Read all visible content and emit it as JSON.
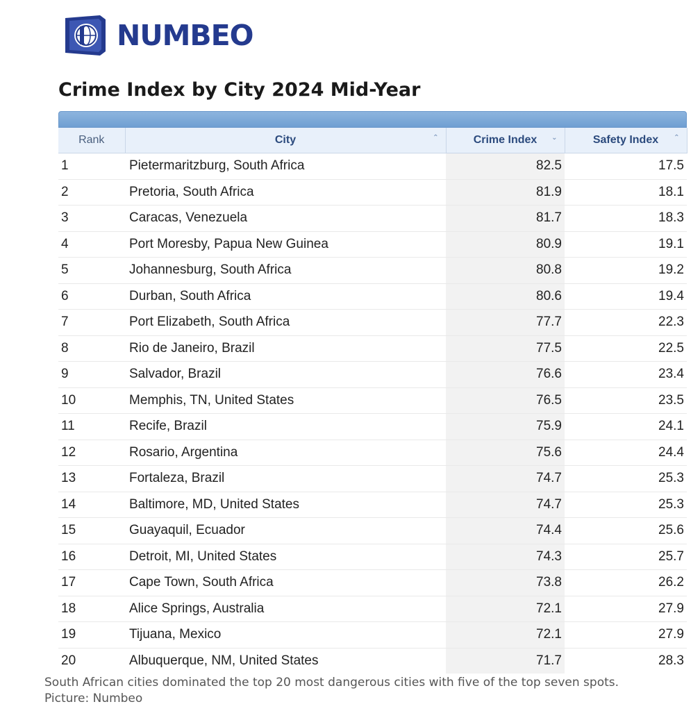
{
  "logo": {
    "text": "NUMBEO"
  },
  "title": "Crime Index by City 2024 Mid-Year",
  "table": {
    "headers": {
      "rank": "Rank",
      "city": "City",
      "crime": "Crime Index",
      "safety": "Safety Index"
    },
    "sort_icons": {
      "city": "⌃",
      "crime": "⌄",
      "safety": "⌃"
    },
    "rows": [
      {
        "rank": "1",
        "city": "Pietermaritzburg, South Africa",
        "crime": "82.5",
        "safety": "17.5"
      },
      {
        "rank": "2",
        "city": "Pretoria, South Africa",
        "crime": "81.9",
        "safety": "18.1"
      },
      {
        "rank": "3",
        "city": "Caracas, Venezuela",
        "crime": "81.7",
        "safety": "18.3"
      },
      {
        "rank": "4",
        "city": "Port Moresby, Papua New Guinea",
        "crime": "80.9",
        "safety": "19.1"
      },
      {
        "rank": "5",
        "city": "Johannesburg, South Africa",
        "crime": "80.8",
        "safety": "19.2"
      },
      {
        "rank": "6",
        "city": "Durban, South Africa",
        "crime": "80.6",
        "safety": "19.4"
      },
      {
        "rank": "7",
        "city": "Port Elizabeth, South Africa",
        "crime": "77.7",
        "safety": "22.3"
      },
      {
        "rank": "8",
        "city": "Rio de Janeiro, Brazil",
        "crime": "77.5",
        "safety": "22.5"
      },
      {
        "rank": "9",
        "city": "Salvador, Brazil",
        "crime": "76.6",
        "safety": "23.4"
      },
      {
        "rank": "10",
        "city": "Memphis, TN, United States",
        "crime": "76.5",
        "safety": "23.5"
      },
      {
        "rank": "11",
        "city": "Recife, Brazil",
        "crime": "75.9",
        "safety": "24.1"
      },
      {
        "rank": "12",
        "city": "Rosario, Argentina",
        "crime": "75.6",
        "safety": "24.4"
      },
      {
        "rank": "13",
        "city": "Fortaleza, Brazil",
        "crime": "74.7",
        "safety": "25.3"
      },
      {
        "rank": "14",
        "city": "Baltimore, MD, United States",
        "crime": "74.7",
        "safety": "25.3"
      },
      {
        "rank": "15",
        "city": "Guayaquil, Ecuador",
        "crime": "74.4",
        "safety": "25.6"
      },
      {
        "rank": "16",
        "city": "Detroit, MI, United States",
        "crime": "74.3",
        "safety": "25.7"
      },
      {
        "rank": "17",
        "city": "Cape Town, South Africa",
        "crime": "73.8",
        "safety": "26.2"
      },
      {
        "rank": "18",
        "city": "Alice Springs, Australia",
        "crime": "72.1",
        "safety": "27.9"
      },
      {
        "rank": "19",
        "city": "Tijuana, Mexico",
        "crime": "72.1",
        "safety": "27.9"
      },
      {
        "rank": "20",
        "city": "Albuquerque, NM, United States",
        "crime": "71.7",
        "safety": "28.3"
      }
    ]
  },
  "caption": {
    "line1": "South African cities dominated the top 20 most dangerous cities with five of the top seven spots.",
    "line2": "Picture: Numbeo"
  },
  "colors": {
    "brand": "#243a8e",
    "header_bar": "#7aa6d6",
    "header_bg": "#e8f0fa",
    "crime_column_bg": "#f2f2f2"
  }
}
